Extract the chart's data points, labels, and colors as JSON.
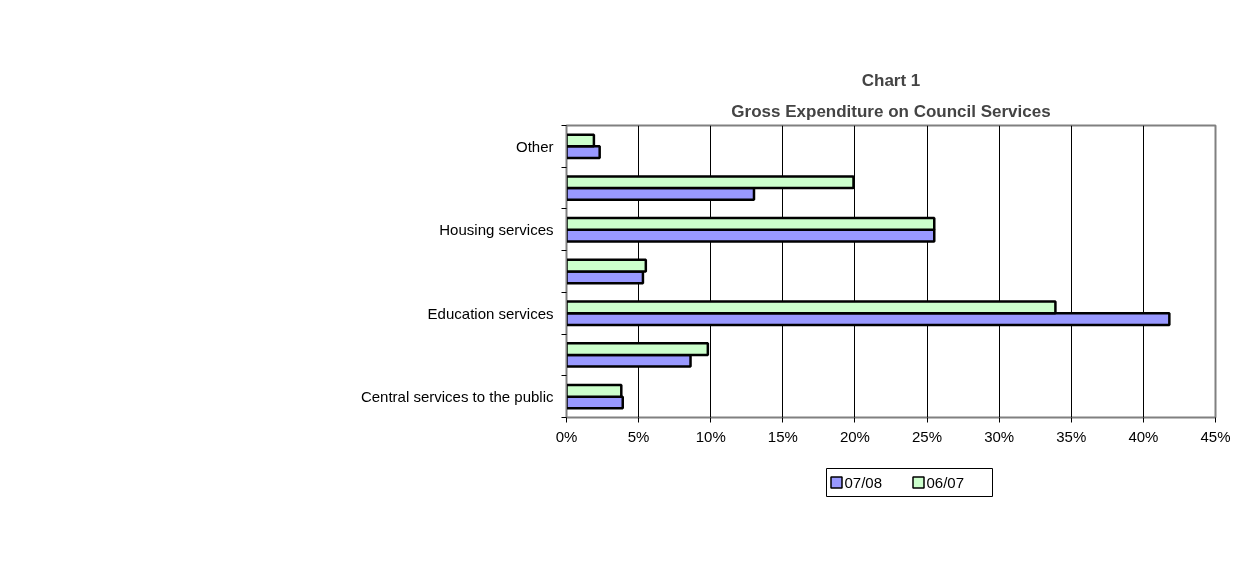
{
  "chart_data": {
    "type": "bar",
    "orientation": "horizontal",
    "title": "Chart 1",
    "subtitle": "Gross Expenditure on Council Services",
    "categories": [
      "Other",
      null,
      "Housing services",
      null,
      "Education services",
      null,
      "Central services to the public"
    ],
    "series": [
      {
        "name": "07/08",
        "color": "#9999ff",
        "values": [
          2.3,
          13.0,
          25.5,
          5.3,
          41.8,
          8.6,
          3.9
        ]
      },
      {
        "name": "06/07",
        "color": "#ccffcc",
        "values": [
          1.9,
          19.9,
          25.5,
          5.5,
          33.9,
          9.8,
          3.8
        ]
      }
    ],
    "xlim": [
      0,
      45
    ],
    "xticks": [
      {
        "value": 0,
        "label": "0%"
      },
      {
        "value": 5,
        "label": "5%"
      },
      {
        "value": 10,
        "label": "10%"
      },
      {
        "value": 15,
        "label": "15%"
      },
      {
        "value": 20,
        "label": "20%"
      },
      {
        "value": 25,
        "label": "25%"
      },
      {
        "value": 30,
        "label": "30%"
      },
      {
        "value": 35,
        "label": "35%"
      },
      {
        "value": 40,
        "label": "40%"
      },
      {
        "value": 45,
        "label": "45%"
      }
    ],
    "grid": "x",
    "legend": "bottom"
  }
}
